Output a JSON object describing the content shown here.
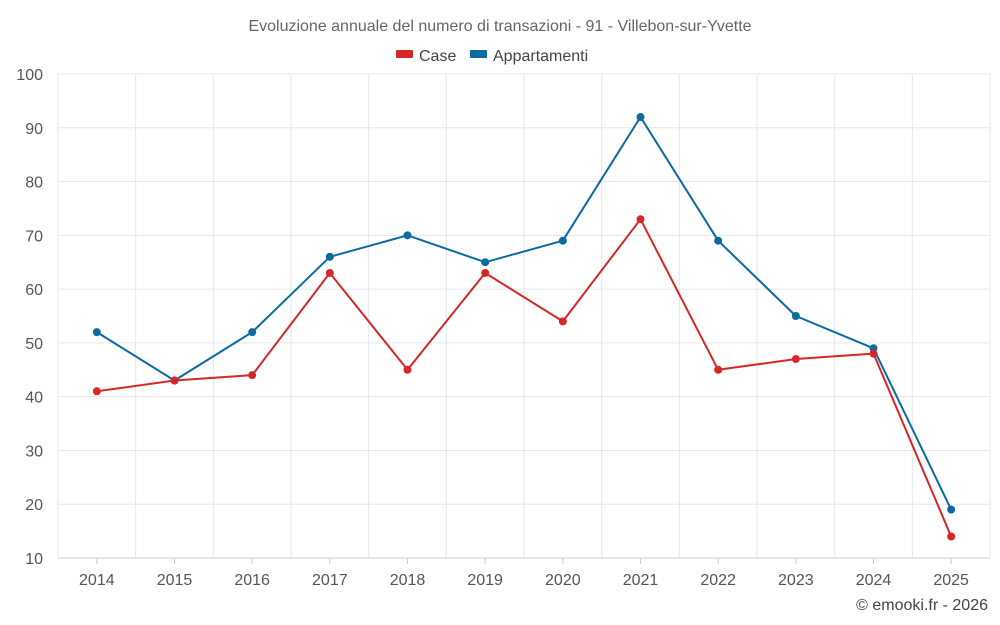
{
  "chart_data": {
    "type": "line",
    "title": "Evoluzione annuale del numero di transazioni - 91 - Villebon-sur-Yvette",
    "categories": [
      "2014",
      "2015",
      "2016",
      "2017",
      "2018",
      "2019",
      "2020",
      "2021",
      "2022",
      "2023",
      "2024",
      "2025"
    ],
    "series": [
      {
        "name": "Case",
        "color": "#d62728",
        "values": [
          41,
          43,
          44,
          63,
          45,
          63,
          54,
          73,
          45,
          47,
          48,
          14
        ]
      },
      {
        "name": "Appartamenti",
        "color": "#0a6aa1",
        "values": [
          52,
          43,
          52,
          66,
          70,
          65,
          69,
          92,
          69,
          55,
          49,
          19
        ]
      }
    ],
    "ylim": [
      10,
      100
    ],
    "yticks": [
      10,
      20,
      30,
      40,
      50,
      60,
      70,
      80,
      90,
      100
    ],
    "grid": true,
    "legend": "top-center",
    "xlabel": "",
    "ylabel": ""
  },
  "credit": "© emooki.fr - 2026"
}
